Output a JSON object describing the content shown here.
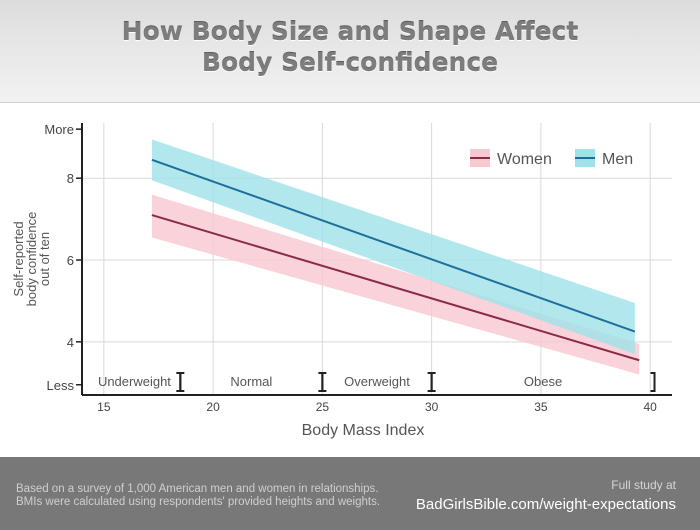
{
  "header": {
    "title_line1": "How Body Size and Shape Affect",
    "title_line2": "Body Self-confidence"
  },
  "footer": {
    "note_line1": "Based on a survey of 1,000 American men and women in relationships.",
    "note_line2": "BMIs were calculated using respondents' provided heights and weights.",
    "study_label": "Full study at",
    "study_link": "BadGirlsBible.com/weight-expectations"
  },
  "colors": {
    "women_line": "#8b2a48",
    "women_band": "#f7c8cf",
    "men_line": "#1f6f9c",
    "men_band": "#9fe2e8",
    "grid": "#d9d9d9",
    "axis": "#222222",
    "text": "#444444"
  },
  "chart_data": {
    "type": "line",
    "title": "",
    "xlabel": "Body Mass Index",
    "ylabel": "Self-reported body confidence out of ten",
    "ylabel_lines": [
      "Self-reported",
      "body confidence",
      "out of ten"
    ],
    "xlim": [
      14,
      41
    ],
    "ylim": [
      2.7,
      9.35
    ],
    "x_ticks": [
      15,
      20,
      25,
      30,
      35,
      40
    ],
    "y_ticks": [
      {
        "value": 4,
        "label": "4"
      },
      {
        "value": 6,
        "label": "6"
      },
      {
        "value": 8,
        "label": "8"
      },
      {
        "value": 9.2,
        "label": "More"
      },
      {
        "value": 2.95,
        "label": "Less"
      }
    ],
    "grid": true,
    "legend_position": "top-right",
    "series": [
      {
        "name": "Women",
        "x": [
          17.2,
          39.5
        ],
        "y": [
          7.1,
          3.55
        ],
        "band_lower": [
          6.55,
          3.2
        ],
        "band_upper": [
          7.6,
          3.95
        ]
      },
      {
        "name": "Men",
        "x": [
          17.2,
          39.3
        ],
        "y": [
          8.45,
          4.25
        ],
        "band_lower": [
          7.95,
          3.7
        ],
        "band_upper": [
          8.95,
          4.95
        ]
      }
    ],
    "categories": [
      {
        "label": "Underweight",
        "from": 14.3,
        "to": 18.5
      },
      {
        "label": "Normal",
        "from": 18.5,
        "to": 25
      },
      {
        "label": "Overweight",
        "from": 25,
        "to": 30
      },
      {
        "label": "Obese",
        "from": 30,
        "to": 40.2
      }
    ]
  }
}
